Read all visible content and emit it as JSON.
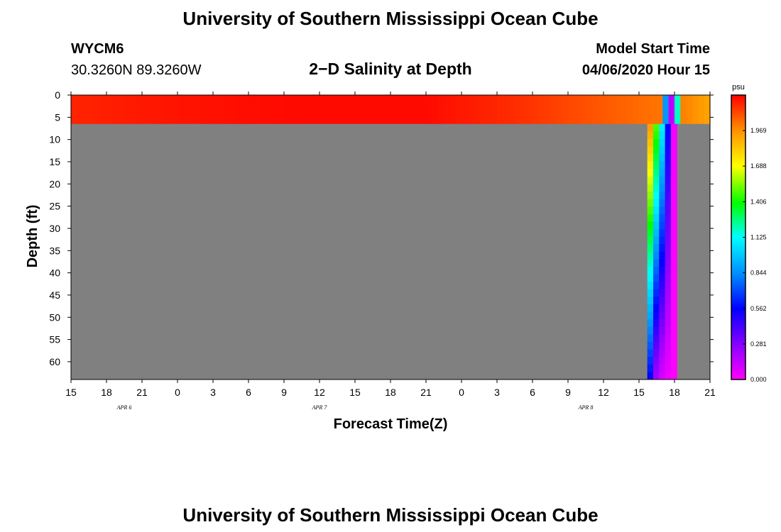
{
  "header": {
    "title": "University of Southern Mississippi Ocean Cube",
    "station_id": "WYCM6",
    "station_coords": "30.3260N 89.3260W",
    "plot_title": "2−D Salinity at Depth",
    "start_label": "Model Start Time",
    "start_value": "04/06/2020 Hour 15"
  },
  "footer": {
    "title": "University of Southern Mississippi Ocean Cube"
  },
  "chart_data": {
    "type": "heatmap",
    "title": "2−D Salinity at Depth",
    "xlabel": "Forecast Time(Z)",
    "ylabel": "Depth (ft)",
    "x_tick_labels": [
      "15",
      "18",
      "21",
      "0",
      "3",
      "6",
      "9",
      "12",
      "15",
      "18",
      "21",
      "0",
      "3",
      "6",
      "9",
      "12",
      "15",
      "18",
      "21"
    ],
    "x_hours": [
      0,
      3,
      6,
      9,
      12,
      15,
      18,
      21,
      24,
      27,
      30,
      33,
      36,
      39,
      42,
      45,
      48,
      51,
      54
    ],
    "xlim": [
      0,
      54
    ],
    "date_labels": [
      {
        "text": "APR  6",
        "hour": 4.5
      },
      {
        "text": "APR  7",
        "hour": 21
      },
      {
        "text": "APR  8",
        "hour": 43.5
      }
    ],
    "y_ticks": [
      0,
      5,
      10,
      15,
      20,
      25,
      30,
      35,
      40,
      45,
      50,
      55,
      60
    ],
    "ylim": [
      0,
      64
    ],
    "colorbar": {
      "unit": "psu",
      "ticks": [
        "1.969",
        "1.688",
        "1.406",
        "1.125",
        "0.844",
        "0.562",
        "0.281",
        "0.000"
      ],
      "min": 0.0,
      "max": 2.25
    },
    "land_color": "#808080",
    "surface_layer": {
      "depth_range": [
        0,
        6.5
      ],
      "time_series": [
        {
          "hour": 0,
          "value": 2.18
        },
        {
          "hour": 8,
          "value": 2.21
        },
        {
          "hour": 18,
          "value": 2.23
        },
        {
          "hour": 30,
          "value": 2.23
        },
        {
          "hour": 38,
          "value": 2.16
        },
        {
          "hour": 43,
          "value": 2.1
        },
        {
          "hour": 50,
          "value": 2.02
        },
        {
          "hour": 50.2,
          "value": 0.95
        },
        {
          "hour": 50.7,
          "value": 0.05
        },
        {
          "hour": 51.2,
          "value": 1.1
        },
        {
          "hour": 51.7,
          "value": 2.0
        },
        {
          "hour": 54,
          "value": 1.92
        }
      ]
    },
    "deep_columns": [
      {
        "from_hour": 48.7,
        "to_hour": 49.2,
        "depth_range": [
          6.5,
          64
        ],
        "top_value": 1.95,
        "bottom_value": 0.55
      },
      {
        "from_hour": 49.2,
        "to_hour": 49.7,
        "depth_range": [
          6.5,
          64
        ],
        "top_value": 1.5,
        "bottom_value": 0.2
      },
      {
        "from_hour": 49.7,
        "to_hour": 50.2,
        "depth_range": [
          6.5,
          64
        ],
        "top_value": 1.1,
        "bottom_value": 0.08
      },
      {
        "from_hour": 50.2,
        "to_hour": 50.7,
        "depth_range": [
          6.5,
          64
        ],
        "top_value": 0.55,
        "bottom_value": 0.03
      },
      {
        "from_hour": 50.7,
        "to_hour": 51.2,
        "depth_range": [
          6.5,
          64
        ],
        "top_value": 0.02,
        "bottom_value": 0.0
      }
    ]
  }
}
